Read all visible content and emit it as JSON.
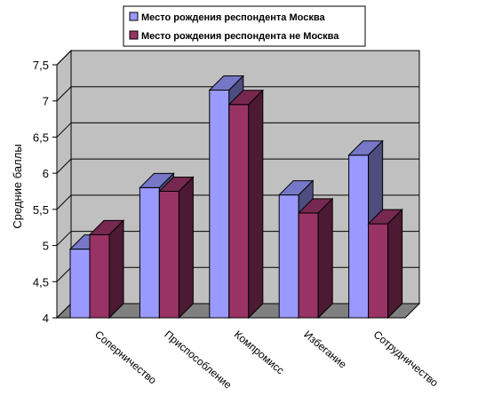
{
  "chart_data": {
    "type": "bar",
    "categories": [
      "Соперничество",
      "Приспособление",
      "Компромисс",
      "Избегание",
      "Сотрудничество"
    ],
    "series": [
      {
        "name": "Место рождения респондента Москва",
        "values": [
          4.95,
          5.8,
          7.15,
          5.7,
          6.25
        ],
        "color": "#9999ff"
      },
      {
        "name": "Место рождения респондента не Москва",
        "values": [
          5.15,
          5.75,
          6.95,
          5.45,
          5.3
        ],
        "color": "#993366"
      }
    ],
    "ylabel": "Средние баллы",
    "ylim": [
      4,
      7.5
    ],
    "yticks": [
      "4",
      "4,5",
      "5",
      "5,5",
      "6",
      "6,5",
      "7",
      "7,5"
    ],
    "grid": true,
    "legend": "top-center"
  }
}
